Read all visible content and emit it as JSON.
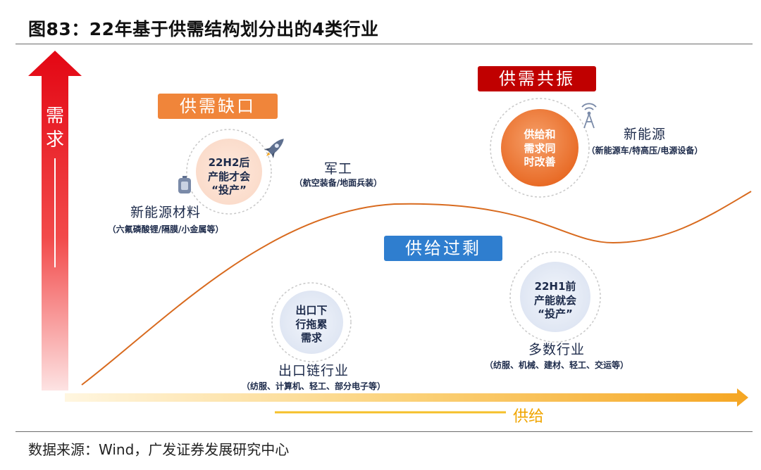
{
  "title": "图83：22年基于供需结构划分出的4类行业",
  "source": "数据来源：Wind，广发证券发展研究中心",
  "axes": {
    "y_label": "需求",
    "x_label": "供给"
  },
  "boxes": {
    "gap": "供需缺口",
    "resonance": "供需共振",
    "surplus": "供给过剩"
  },
  "circles": {
    "gap": [
      "22H2后",
      "产能才会",
      "“投产”"
    ],
    "resonance": [
      "供给和",
      "需求同",
      "时改善"
    ],
    "export": [
      "出口下",
      "行拖累",
      "需求"
    ],
    "surplus": [
      "22H1前",
      "产能就会",
      "“投产”"
    ]
  },
  "industries": {
    "military": {
      "name": "军工",
      "detail": "（航空装备/地面兵装）"
    },
    "nev_materials": {
      "name": "新能源材料",
      "detail": "（六氟磷酸锂/隔膜/小金属等）"
    },
    "new_energy": {
      "name": "新能源",
      "detail": "（新能源车/特高压/电源设备）"
    },
    "export_chain": {
      "name": "出口链行业",
      "detail": "（纺服、计算机、轻工、部分电子等）"
    },
    "multi": {
      "name": "多数行业",
      "detail": "（纺服、机械、建材、轻工、交运等）"
    }
  },
  "colors": {
    "gap_box": "#f0853a",
    "resonance_box": "#c00000",
    "surplus_box": "#2f7ecf",
    "curve": "#d86a1e",
    "arrow_red": "#e30613",
    "arrow_orange": "#f5a623"
  }
}
